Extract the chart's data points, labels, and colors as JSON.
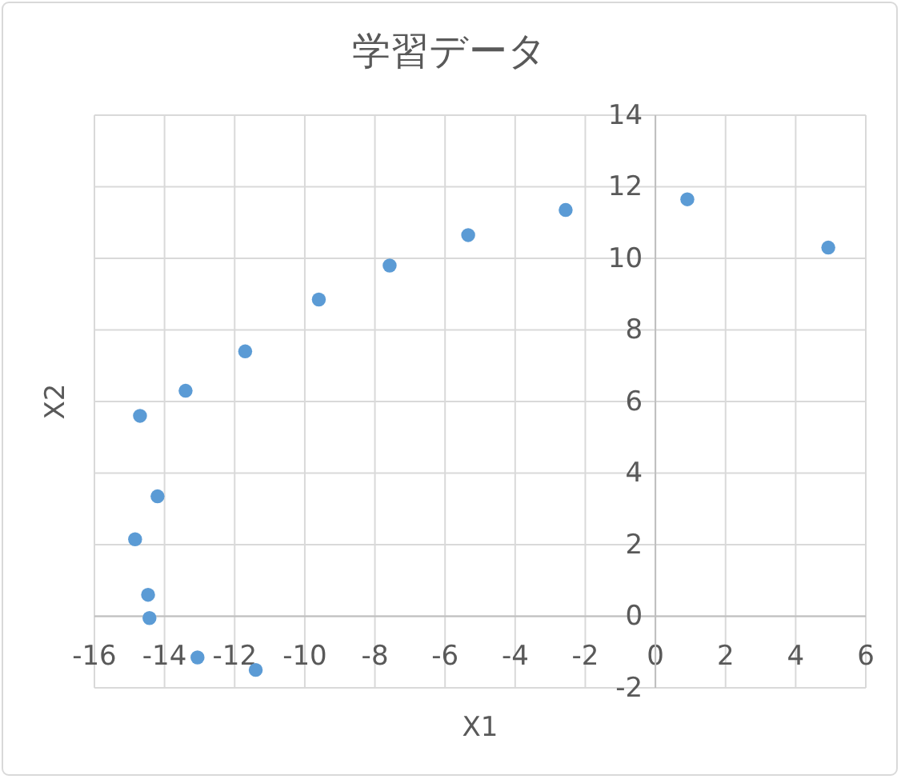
{
  "chart_data": {
    "type": "scatter",
    "title": "学習データ",
    "xlabel": "X1",
    "ylabel": "X2",
    "x": [
      -14.7,
      -14.84,
      -14.2,
      -14.47,
      -14.43,
      -13.4,
      -13.06,
      -11.7,
      -11.4,
      -9.6,
      -7.58,
      -5.34,
      -2.56,
      0.91,
      4.93
    ],
    "series": [
      {
        "color": "#5b9bd5",
        "values": [
          5.6,
          2.15,
          3.35,
          0.6,
          -0.05,
          6.3,
          -1.15,
          7.4,
          -1.5,
          8.85,
          9.8,
          10.65,
          11.35,
          11.65,
          10.3
        ]
      }
    ],
    "xlim": [
      -16,
      6
    ],
    "xticks": [
      -16,
      -14,
      -12,
      -10,
      -8,
      -6,
      -4,
      -2,
      0,
      2,
      4,
      6
    ],
    "ylim": [
      -2,
      14
    ],
    "yticks": [
      -2,
      0,
      2,
      4,
      6,
      8,
      10,
      12,
      14
    ],
    "grid": true,
    "marker": "circle"
  }
}
